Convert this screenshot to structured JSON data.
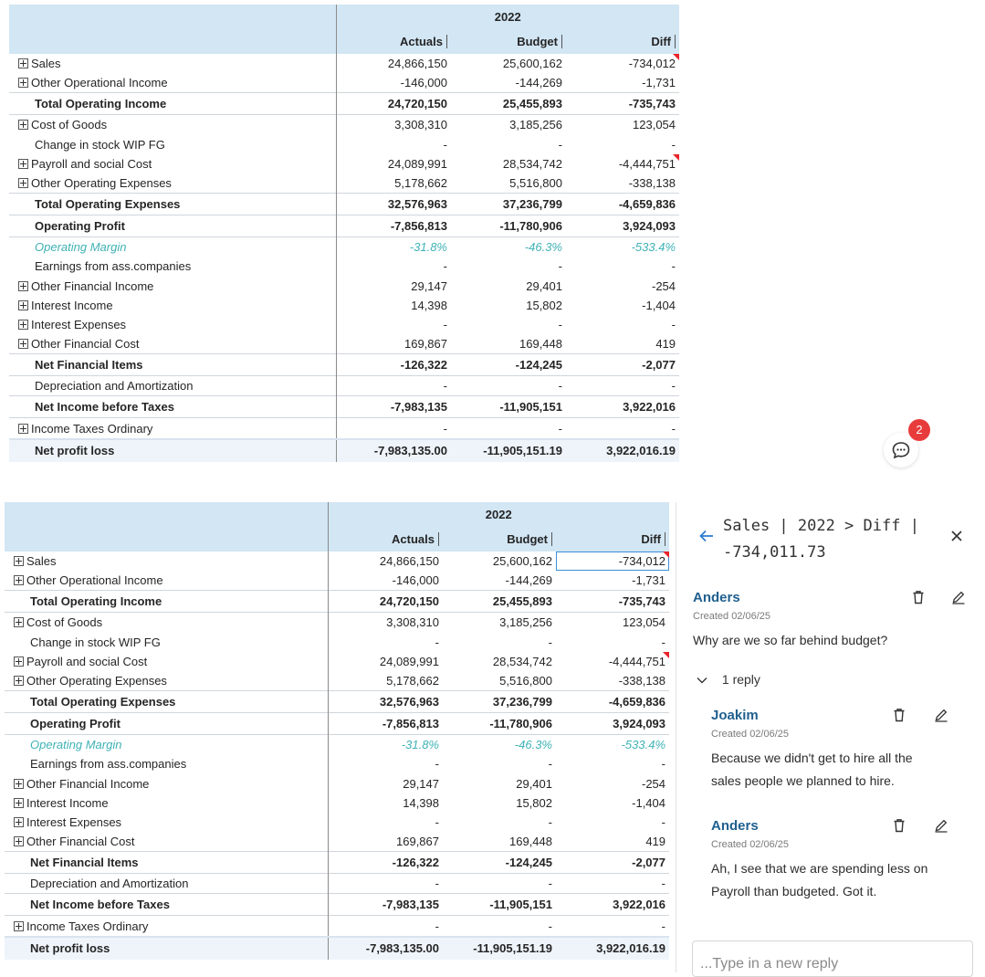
{
  "matrix": {
    "year": "2022",
    "columns": [
      "Actuals",
      "Budget",
      "Diff"
    ],
    "rows": [
      {
        "label": "Sales",
        "expand": true,
        "style": "row",
        "values": [
          "24,866,150",
          "25,600,162",
          "-734,012"
        ],
        "flag": true
      },
      {
        "label": "Other Operational Income",
        "expand": true,
        "style": "row",
        "values": [
          "-146,000",
          "-144,269",
          "-1,731"
        ]
      },
      {
        "label": "Total Operating Income",
        "expand": false,
        "style": "total",
        "values": [
          "24,720,150",
          "25,455,893",
          "-735,743"
        ]
      },
      {
        "label": "Cost of Goods",
        "expand": true,
        "style": "row",
        "values": [
          "3,308,310",
          "3,185,256",
          "123,054"
        ]
      },
      {
        "label": "Change in stock WIP FG",
        "expand": false,
        "style": "indent",
        "values": [
          "-",
          "-",
          "-"
        ]
      },
      {
        "label": "Payroll and social Cost",
        "expand": true,
        "style": "row",
        "values": [
          "24,089,991",
          "28,534,742",
          "-4,444,751"
        ],
        "flag": true
      },
      {
        "label": "Other Operating Expenses",
        "expand": true,
        "style": "row",
        "values": [
          "5,178,662",
          "5,516,800",
          "-338,138"
        ]
      },
      {
        "label": "Total Operating Expenses",
        "expand": false,
        "style": "total",
        "values": [
          "32,576,963",
          "37,236,799",
          "-4,659,836"
        ]
      },
      {
        "label": "Operating Profit",
        "expand": false,
        "style": "total",
        "values": [
          "-7,856,813",
          "-11,780,906",
          "3,924,093"
        ]
      },
      {
        "label": "Operating Margin",
        "expand": false,
        "style": "italic",
        "values": [
          "-31.8%",
          "-46.3%",
          "-533.4%"
        ]
      },
      {
        "label": "Earnings from ass.companies",
        "expand": false,
        "style": "indent",
        "values": [
          "-",
          "-",
          "-"
        ]
      },
      {
        "label": "Other Financial Income",
        "expand": true,
        "style": "row",
        "values": [
          "29,147",
          "29,401",
          "-254"
        ]
      },
      {
        "label": "Interest Income",
        "expand": true,
        "style": "row",
        "values": [
          "14,398",
          "15,802",
          "-1,404"
        ]
      },
      {
        "label": "Interest Expenses",
        "expand": true,
        "style": "row",
        "values": [
          "-",
          "-",
          "-"
        ]
      },
      {
        "label": "Other Financial Cost",
        "expand": true,
        "style": "row",
        "values": [
          "169,867",
          "169,448",
          "419"
        ]
      },
      {
        "label": "Net Financial Items",
        "expand": false,
        "style": "total",
        "values": [
          "-126,322",
          "-124,245",
          "-2,077"
        ]
      },
      {
        "label": "Depreciation and Amortization",
        "expand": false,
        "style": "indent",
        "values": [
          "-",
          "-",
          "-"
        ]
      },
      {
        "label": "Net Income before Taxes",
        "expand": false,
        "style": "total",
        "values": [
          "-7,983,135",
          "-11,905,151",
          "3,922,016"
        ]
      },
      {
        "label": "Income Taxes Ordinary",
        "expand": true,
        "style": "row",
        "values": [
          "-",
          "-",
          "-"
        ]
      },
      {
        "label": "Net profit loss",
        "expand": false,
        "style": "grand",
        "values": [
          "-7,983,135.00",
          "-11,905,151.19",
          "3,922,016.19"
        ]
      }
    ]
  },
  "comment_badge": {
    "count": "2"
  },
  "comment_pane": {
    "title_line1": "Sales | 2022 > Diff |",
    "title_line2": "-734,011.73",
    "reply_toggle": "1 reply",
    "reply_placeholder": "...Type in a new reply",
    "comments": [
      {
        "author": "Anders",
        "date": "Created 02/06/25",
        "text": [
          "Why are we so far behind budget?"
        ]
      },
      {
        "author": "Joakim",
        "date": "Created 02/06/25",
        "text": [
          "Because we didn't get to hire all the",
          "sales people we planned to hire."
        ]
      },
      {
        "author": "Anders",
        "date": "Created 02/06/25",
        "text": [
          "Ah, I see that we are spending less on",
          "Payroll than budgeted. Got it."
        ]
      }
    ]
  }
}
